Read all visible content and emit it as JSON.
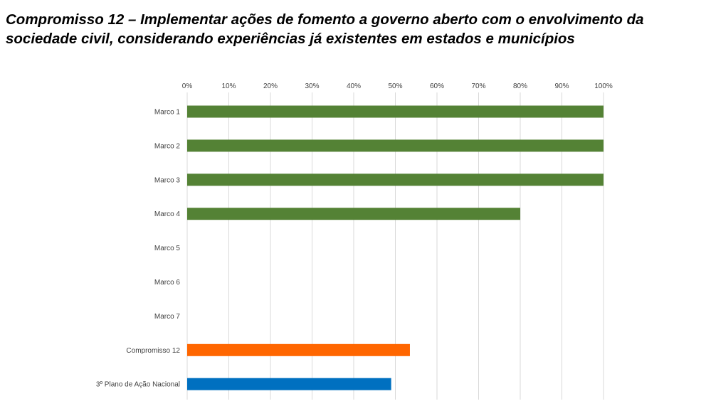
{
  "chart_data": {
    "type": "bar",
    "orientation": "horizontal",
    "title": "Compromisso 12 – Implementar ações de fomento a governo aberto com o envolvimento da sociedade civil, considerando experiências já existentes em estados e municípios",
    "categories": [
      "Marco 1",
      "Marco 2",
      "Marco 3",
      "Marco 4",
      "Marco 5",
      "Marco 6",
      "Marco 7",
      "Compromisso 12",
      "3º Plano de Ação Nacional"
    ],
    "values": [
      100,
      100,
      100,
      80,
      0,
      0,
      0,
      53.5,
      49
    ],
    "colors": [
      "#548235",
      "#548235",
      "#548235",
      "#548235",
      "#548235",
      "#548235",
      "#548235",
      "#FF6600",
      "#0070C0"
    ],
    "xticks": [
      "0%",
      "10%",
      "20%",
      "30%",
      "40%",
      "50%",
      "60%",
      "70%",
      "80%",
      "90%",
      "100%"
    ],
    "xlim": [
      0,
      100
    ],
    "xlabel": "",
    "ylabel": "",
    "grid": true,
    "axis_position": "top"
  }
}
